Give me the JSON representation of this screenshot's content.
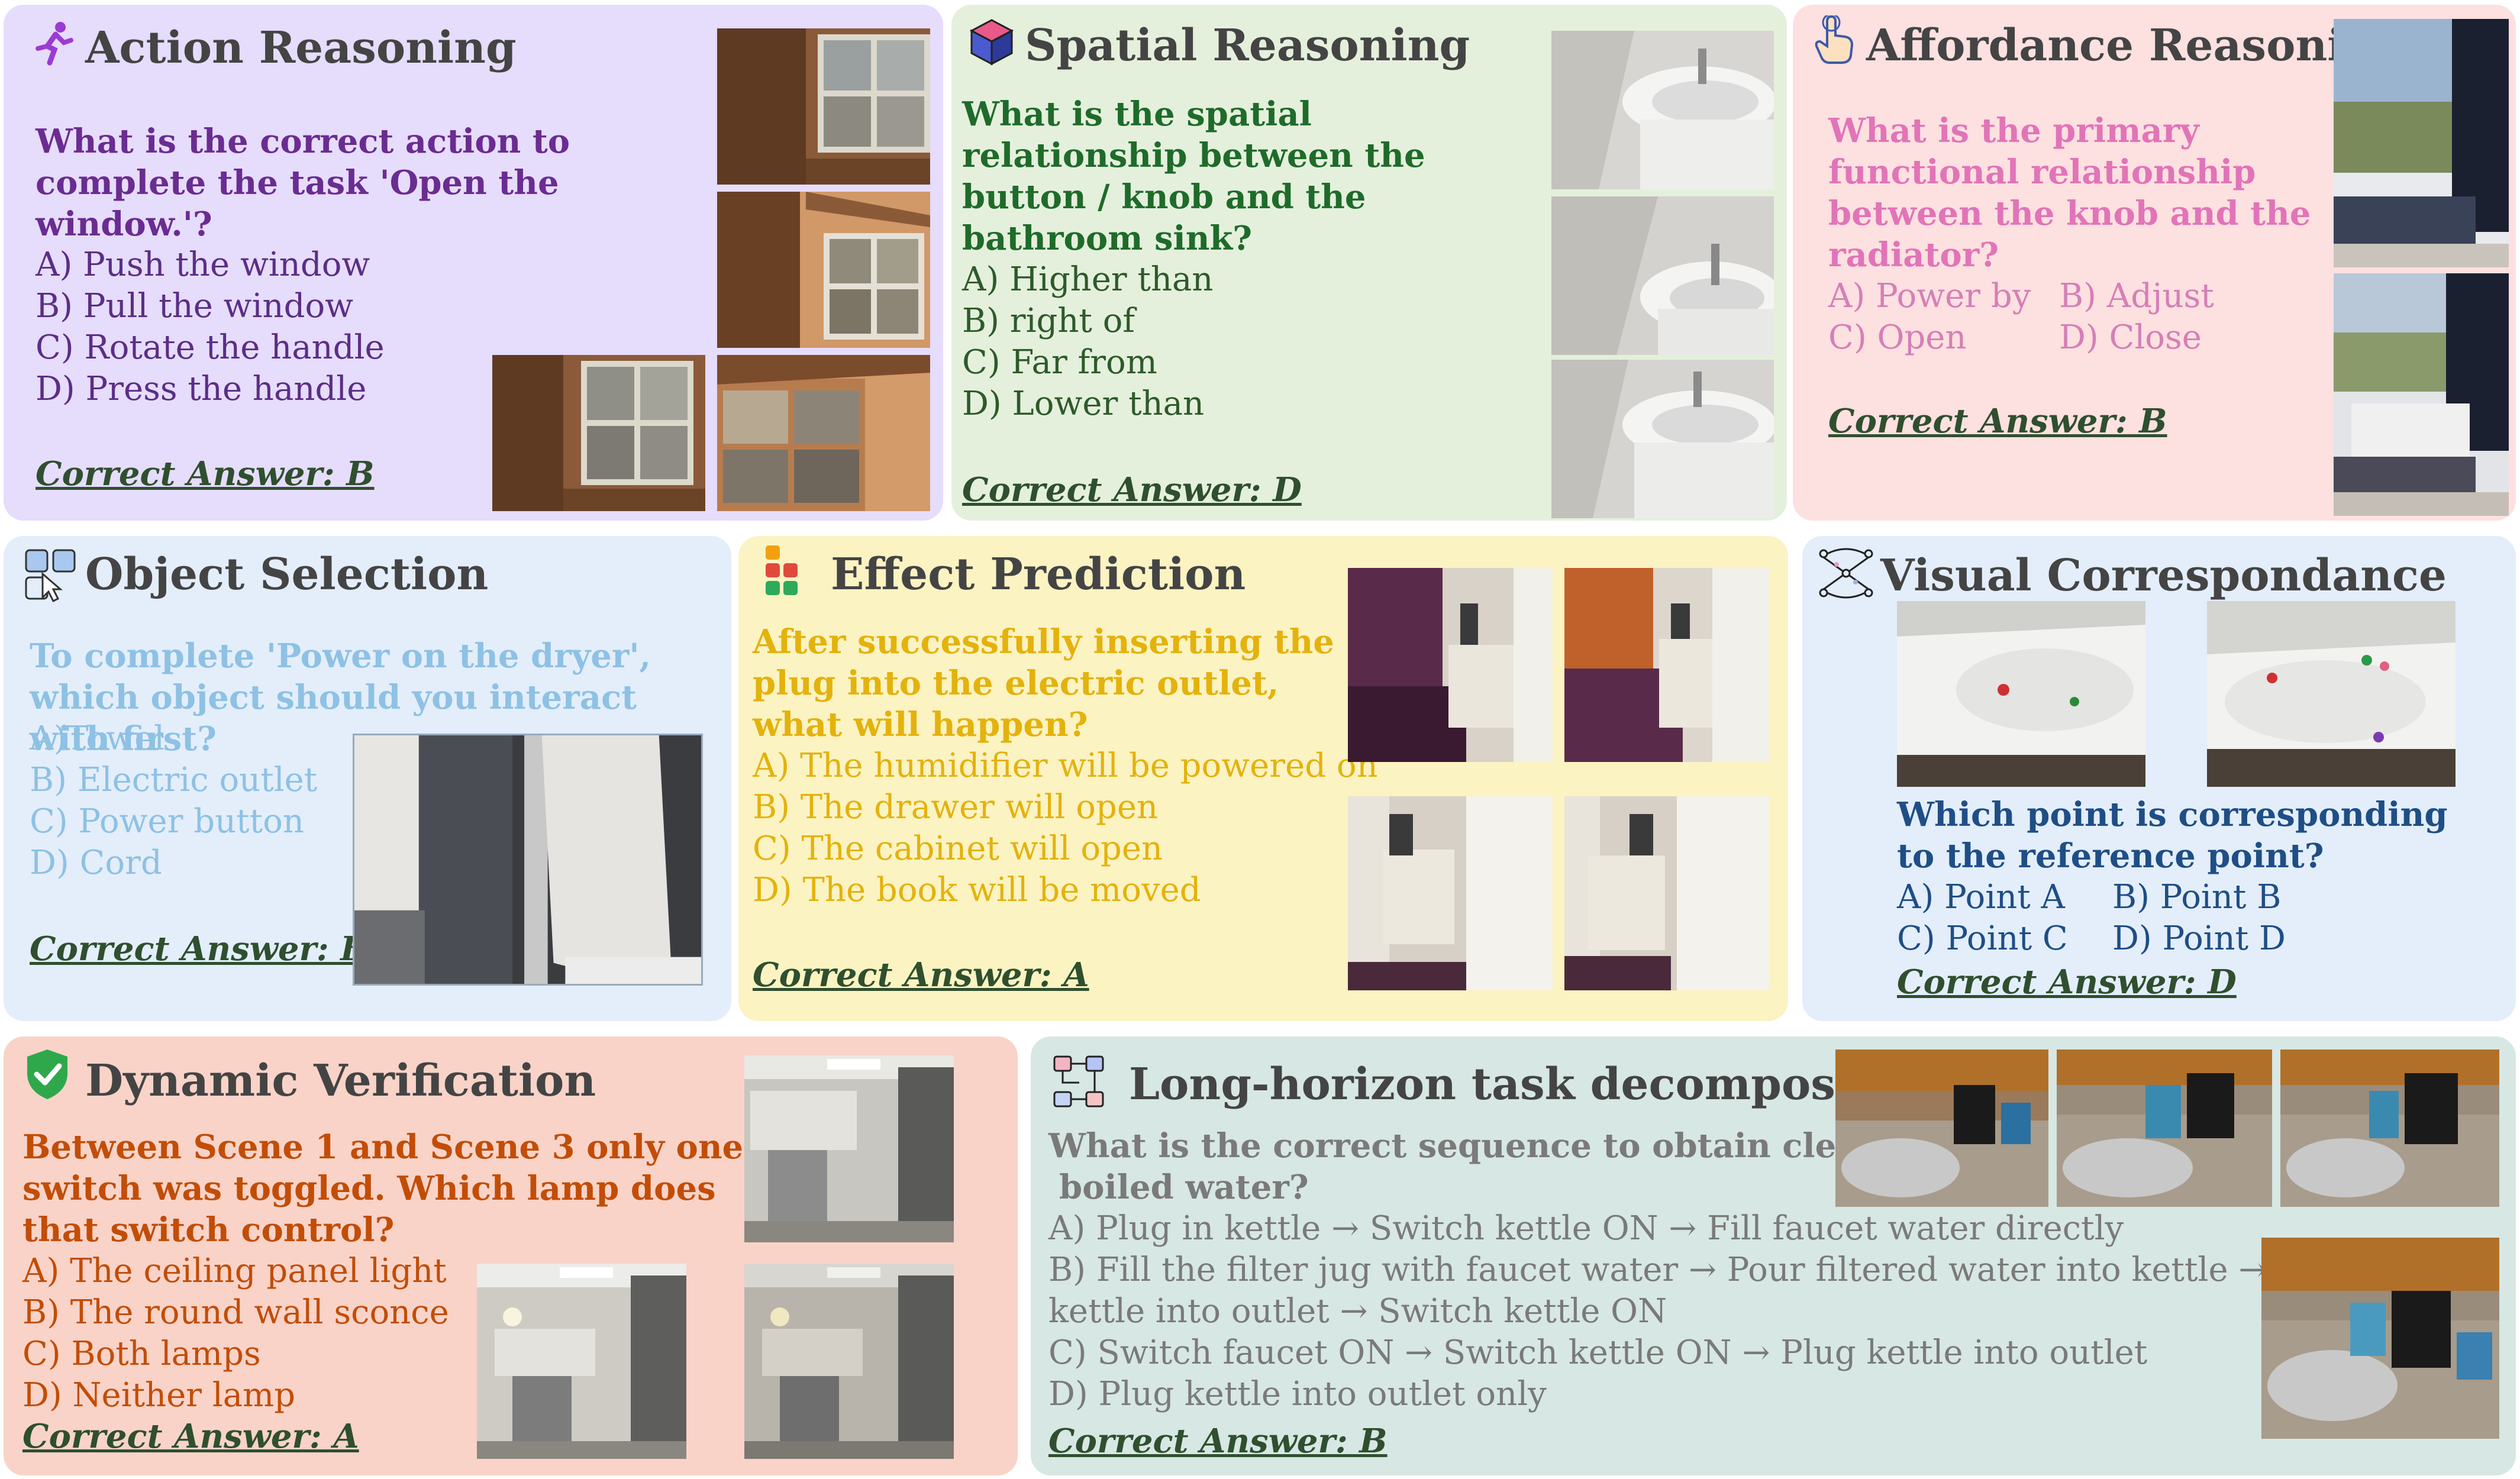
{
  "colors": {
    "action_bg": "#e6dcfb",
    "action_q": "#6a2c91",
    "action_opt": "#5b2e86",
    "spatial_bg": "#e4f0dc",
    "spatial_q": "#1f6b2a",
    "spatial_opt": "#2e5a2a",
    "afford_bg": "#fde0e0",
    "afford_q": "#e174b8",
    "afford_opt": "#d57fb8",
    "object_bg": "#e3eefa",
    "object_q": "#8ec1e4",
    "effect_bg": "#fbf3c2",
    "effect_q": "#e4b20c",
    "visual_bg": "#e3eefa",
    "visual_q": "#1f4e86",
    "dynamic_bg": "#f9d3c8",
    "dynamic_q": "#c24d06",
    "long_bg": "#d7e7e3",
    "long_q": "#7a7a7a",
    "answer": "#2f4f2f"
  },
  "action": {
    "icon": "running-figure-icon",
    "title": "Action Reasoning",
    "question": "What is the correct action to complete the task 'Open the window.'?",
    "options": [
      "A) Push the window",
      "B) Pull the window",
      "C) Rotate the handle",
      "D) Press the handle"
    ],
    "answer": "Correct Answer: B"
  },
  "spatial": {
    "icon": "cube-icon",
    "title": "Spatial Reasoning",
    "question": "What is the spatial relationship between the button / knob and the bathroom sink?",
    "options": [
      "A) Higher than",
      "B) right of",
      "C) Far from",
      "D) Lower than"
    ],
    "answer": "Correct Answer: D"
  },
  "afford": {
    "icon": "pointing-hand-icon",
    "title": "Affordance Reasoning",
    "question": "What is the primary functional relationship between the knob and the radiator?",
    "options": [
      "A) Power by",
      "B) Adjust",
      "C) Open",
      "D) Close"
    ],
    "answer": "Correct Answer: B"
  },
  "object": {
    "icon": "select-grid-icon",
    "title": "Object Selection",
    "question": "To complete 'Power on the dryer', which object should you interact with first?",
    "options": [
      "A)Towel",
      "B) Electric outlet",
      "C) Power button",
      "D) Cord"
    ],
    "answer": "Correct Answer: B"
  },
  "effect": {
    "icon": "blocks-icon",
    "title": "Effect Prediction",
    "question": "After successfully inserting the plug into the electric outlet, what will happen?",
    "options": [
      "A) The humidifier will be powered on",
      "B) The drawer will open",
      "C) The cabinet will open",
      "D) The book will be moved"
    ],
    "answer": "Correct Answer: A"
  },
  "visual": {
    "icon": "network-icon",
    "title": "Visual Correspondance",
    "question": "Which point is corresponding to the reference point?",
    "options": [
      "A) Point A",
      "B) Point B",
      "C) Point C",
      "D) Point D"
    ],
    "answer": "Correct Answer: D"
  },
  "dynamic": {
    "icon": "shield-check-icon",
    "title": "Dynamic Verification",
    "question": "Between Scene 1 and Scene 3 only one switch was toggled. Which lamp does that switch control?",
    "options": [
      "A) The ceiling panel light",
      "B) The round wall sconce",
      "C) Both lamps",
      "D) Neither lamp"
    ],
    "answer": "Correct Answer: A"
  },
  "long": {
    "icon": "flowchart-icon",
    "title": "Long-horizon task decomposition",
    "question_line1": "What is the correct sequence to obtain clean",
    "question_line2": "boiled water?",
    "options": [
      "A) Plug in kettle → Switch kettle ON → Fill faucet water directly",
      "B) Fill the filter jug with faucet water → Pour filtered water into kettle → Plug",
      "kettle into outlet → Switch kettle ON",
      "C) Switch faucet ON → Switch kettle ON → Plug kettle into outlet",
      "D) Plug kettle into outlet only"
    ],
    "answer": "Correct Answer: B"
  }
}
